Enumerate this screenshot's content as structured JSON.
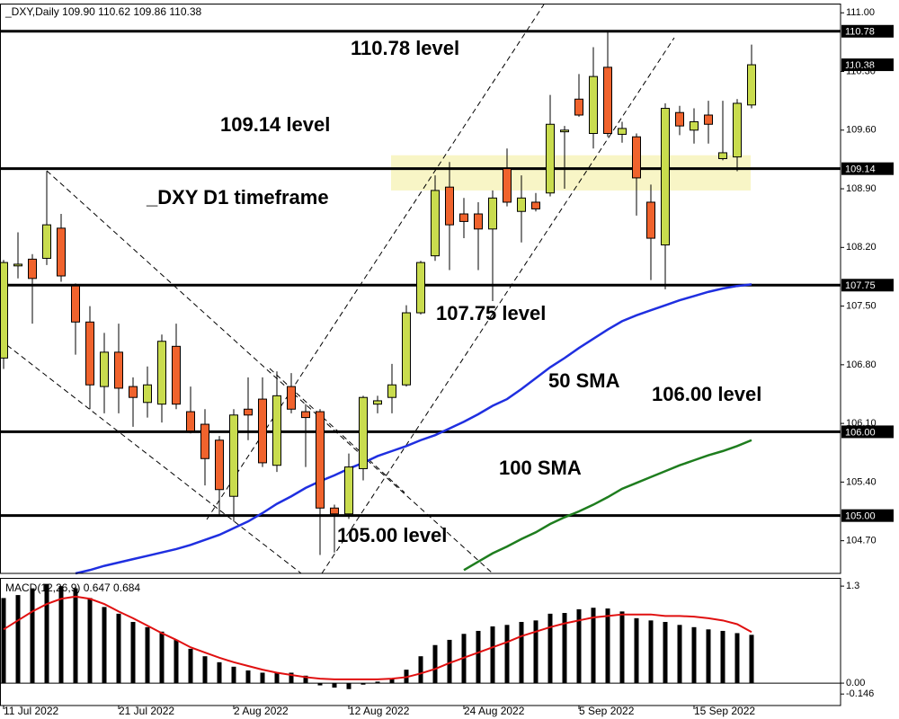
{
  "chart_data": [
    {
      "type": "candlestick",
      "title": "_DXY,Daily 109.90 110.62 109.86 110.38",
      "categories": [
        "11 Jul 2022",
        null,
        null,
        null,
        null,
        null,
        null,
        null,
        "21 Jul 2022",
        null,
        null,
        null,
        null,
        null,
        null,
        null,
        "2 Aug 2022",
        null,
        null,
        null,
        null,
        null,
        null,
        null,
        "12 Aug 2022",
        null,
        null,
        null,
        null,
        null,
        null,
        null,
        "24 Aug 2022",
        null,
        null,
        null,
        null,
        null,
        null,
        null,
        "5 Sep 2022",
        null,
        null,
        null,
        null,
        null,
        null,
        null,
        "15 Sep 2022",
        null,
        null,
        null,
        null
      ],
      "open": [
        106.88,
        107.98,
        108.06,
        108.07,
        108.43,
        107.74,
        107.31,
        106.54,
        106.95,
        106.54,
        106.35,
        106.33,
        107.02,
        106.24,
        106.09,
        105.9,
        105.23,
        106.27,
        106.39,
        105.6,
        106.54,
        106.24,
        106.24,
        105.09,
        105.02,
        105.56,
        106.33,
        106.41,
        106.56,
        107.42,
        108.1,
        108.92,
        108.6,
        108.6,
        108.42,
        109.14,
        108.63,
        108.74,
        108.85,
        109.58,
        109.97,
        109.56,
        110.35,
        109.55,
        109.52,
        108.74,
        108.23,
        109.81,
        109.6,
        109.78,
        109.26,
        109.28,
        109.9
      ],
      "high": [
        108.05,
        108.38,
        108.12,
        109.11,
        108.6,
        107.77,
        107.5,
        107.18,
        107.29,
        106.65,
        106.78,
        107.16,
        107.29,
        106.54,
        106.27,
        105.95,
        106.27,
        106.65,
        106.65,
        106.72,
        106.7,
        106.33,
        106.27,
        105.13,
        105.74,
        106.43,
        106.43,
        106.81,
        107.51,
        108.04,
        109.06,
        109.22,
        108.79,
        108.74,
        108.88,
        109.38,
        109.06,
        108.85,
        110.02,
        109.65,
        110.27,
        110.59,
        110.78,
        109.7,
        109.56,
        108.95,
        109.92,
        109.89,
        109.86,
        109.95,
        109.95,
        109.97,
        110.62
      ],
      "low": [
        106.75,
        107.83,
        107.29,
        107.99,
        107.79,
        106.92,
        106.27,
        106.22,
        106.22,
        106.06,
        106.17,
        106.11,
        106.27,
        105.98,
        105.36,
        104.99,
        104.93,
        105.9,
        105.58,
        105.52,
        106.22,
        105.58,
        104.53,
        104.56,
        104.96,
        105.42,
        106.22,
        106.22,
        106.54,
        107.4,
        108.04,
        107.93,
        108.31,
        107.93,
        107.56,
        108.69,
        108.26,
        108.63,
        108.81,
        108.9,
        109.76,
        109.38,
        109.52,
        109.45,
        108.58,
        107.81,
        107.7,
        109.54,
        109.44,
        109.44,
        109.24,
        109.11,
        109.86
      ],
      "close": [
        108.02,
        108.0,
        107.83,
        108.47,
        107.86,
        107.31,
        106.56,
        106.95,
        106.52,
        106.41,
        106.56,
        107.08,
        106.33,
        106.01,
        105.68,
        105.31,
        106.2,
        106.2,
        105.63,
        106.43,
        106.27,
        106.17,
        105.09,
        105.02,
        105.58,
        106.41,
        106.37,
        106.56,
        107.42,
        108.02,
        108.88,
        108.47,
        108.51,
        108.42,
        108.79,
        108.74,
        108.79,
        108.66,
        109.67,
        109.6,
        109.78,
        110.24,
        109.56,
        109.62,
        109.03,
        108.31,
        109.86,
        109.65,
        109.7,
        109.67,
        109.33,
        109.92,
        110.38
      ],
      "up_color": "#c9dc4e",
      "down_color": "#f0632d",
      "series": [
        {
          "name": "50 SMA",
          "color": "#1f2fe0",
          "values": [
            null,
            null,
            null,
            null,
            null,
            104.31,
            104.35,
            104.4,
            104.44,
            104.48,
            104.52,
            104.56,
            104.6,
            104.65,
            104.71,
            104.77,
            104.85,
            104.93,
            105.03,
            105.14,
            105.23,
            105.33,
            105.41,
            105.48,
            105.56,
            105.63,
            105.71,
            105.77,
            105.83,
            105.9,
            105.96,
            106.04,
            106.12,
            106.21,
            106.31,
            106.39,
            106.51,
            106.64,
            106.77,
            106.88,
            107.0,
            107.11,
            107.22,
            107.32,
            107.39,
            107.45,
            107.51,
            107.57,
            107.62,
            107.67,
            107.71,
            107.74,
            107.76
          ]
        },
        {
          "name": "100 SMA",
          "color": "#1e7d1e",
          "values": [
            null,
            null,
            null,
            null,
            null,
            null,
            null,
            null,
            null,
            null,
            null,
            null,
            null,
            null,
            null,
            null,
            null,
            null,
            null,
            null,
            null,
            null,
            null,
            null,
            null,
            null,
            null,
            null,
            null,
            null,
            null,
            null,
            104.35,
            104.45,
            104.55,
            104.63,
            104.72,
            104.8,
            104.9,
            104.98,
            105.05,
            105.13,
            105.22,
            105.32,
            105.39,
            105.46,
            105.53,
            105.6,
            105.66,
            105.72,
            105.77,
            105.83,
            105.9
          ]
        }
      ],
      "levels": [
        110.78,
        109.14,
        107.75,
        {
          "value": 106,
          "label": "106.00"
        },
        {
          "value": 105,
          "label": "105.00"
        }
      ],
      "zone": [
        108.88,
        109.3
      ],
      "zone_color": "#f8f5c6",
      "annotations": [
        "110.78 level",
        "109.14 level",
        "_DXY D1 timeframe",
        "107.75 level",
        "106.00 level",
        "105.00 level"
      ],
      "ylim": [
        104.31,
        111.11
      ],
      "yticks": [
        {
          "value": 111,
          "label": "111.00"
        },
        {
          "value": 110.3,
          "label": "110.30"
        },
        {
          "value": 109.6,
          "label": "109.60"
        },
        {
          "value": 108.9,
          "label": "108.90"
        },
        {
          "value": 108.2,
          "label": "108.20"
        },
        {
          "value": 107.5,
          "label": "107.50"
        },
        {
          "value": 106.8,
          "label": "106.80"
        },
        {
          "value": 106.1,
          "label": "106.10"
        },
        {
          "value": 105.4,
          "label": "105.40"
        },
        {
          "value": 104.7,
          "label": "104.70"
        }
      ]
    },
    {
      "type": "bar",
      "title": "MACD(12,26,9) 0.647 0.684",
      "values": [
        1.14,
        1.18,
        1.27,
        1.33,
        1.3,
        1.27,
        1.14,
        1.02,
        0.93,
        0.82,
        0.75,
        0.69,
        0.58,
        0.46,
        0.36,
        0.28,
        0.22,
        0.17,
        0.14,
        0.14,
        0.14,
        0.1,
        -0.03,
        -0.06,
        -0.08,
        -0.02,
        0.02,
        0.06,
        0.18,
        0.36,
        0.51,
        0.58,
        0.66,
        0.7,
        0.76,
        0.78,
        0.82,
        0.84,
        0.93,
        0.94,
        0.99,
        1.01,
        1.0,
        0.96,
        0.87,
        0.84,
        0.82,
        0.78,
        0.75,
        0.72,
        0.7,
        0.67,
        0.647
      ],
      "color": "#000000",
      "signal": {
        "color": "#e01010",
        "values": [
          0.72,
          0.84,
          0.96,
          1.06,
          1.13,
          1.16,
          1.13,
          1.06,
          0.96,
          0.87,
          0.77,
          0.67,
          0.58,
          0.48,
          0.41,
          0.34,
          0.28,
          0.23,
          0.18,
          0.14,
          0.11,
          0.08,
          0.06,
          0.05,
          0.05,
          0.05,
          0.05,
          0.06,
          0.08,
          0.13,
          0.19,
          0.27,
          0.34,
          0.41,
          0.48,
          0.55,
          0.63,
          0.69,
          0.75,
          0.8,
          0.84,
          0.88,
          0.9,
          0.92,
          0.92,
          0.92,
          0.9,
          0.9,
          0.89,
          0.87,
          0.84,
          0.79,
          0.684
        ]
      },
      "ylim": [
        -0.3,
        1.41
      ],
      "yticks": [
        1.3,
        {
          "value": 0,
          "label": "0.00"
        },
        -0.146
      ]
    }
  ]
}
